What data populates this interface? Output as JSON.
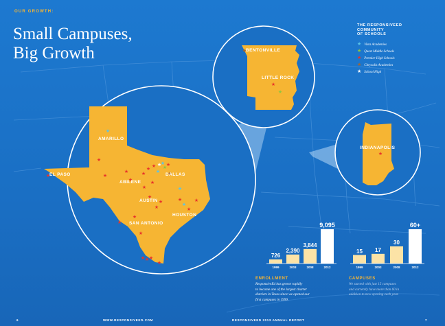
{
  "header": {
    "eyebrow": "OUR GROWTH:",
    "title_line1": "Small Campuses,",
    "title_line2": "Big Growth"
  },
  "legend": {
    "heading_line1": "THE RESPONSIVEED",
    "heading_line2": "COMMUNITY",
    "heading_line3": "OF SCHOOLS",
    "items": [
      {
        "label": "Vista Academies",
        "color": "#5bc4e8",
        "icon": "star-icon"
      },
      {
        "label": "Quest Middle Schools",
        "color": "#8ec63f",
        "icon": "star-icon"
      },
      {
        "label": "Premier High Schools",
        "color": "#e8332a",
        "icon": "star-icon"
      },
      {
        "label": "Chrysalis Academies",
        "color": "#a8652a",
        "icon": "star-icon"
      },
      {
        "label": "School High",
        "color": "#ffffff",
        "icon": "star-icon"
      }
    ]
  },
  "map": {
    "state_color": "#f6b533",
    "texas_cities": {
      "amarillo": "AMARILLO",
      "el_paso": "EL PASO",
      "abilene": "ABILENE",
      "dallas": "DALLAS",
      "austin": "AUSTIN",
      "houston": "HOUSTON",
      "san_antonio": "SAN ANTONIO"
    },
    "arkansas_cities": {
      "bentonville": "BENTONVILLE",
      "little_rock": "LITTLE ROCK"
    },
    "indiana_cities": {
      "indianapolis": "INDIANAPOLIS"
    }
  },
  "enrollment": {
    "title": "ENROLLMENT",
    "text": [
      "ResponsiveEd has grown rapidly",
      "to become one of the largest charter",
      "districts in Texas since we opened our",
      "first campuses in 1999."
    ]
  },
  "campuses": {
    "title": "CAMPUSES",
    "text": [
      "We started with just 15 campuses",
      "and currently have more than 60 in",
      "addition to new opening each year."
    ]
  },
  "chart_data": [
    {
      "type": "bar",
      "categories": [
        "1999",
        "2003",
        "2008",
        "2012"
      ],
      "values": [
        726,
        2390,
        3844,
        9095
      ],
      "value_labels": [
        "726",
        "2,390",
        "3,844",
        "9,095"
      ]
    },
    {
      "type": "bar",
      "categories": [
        "1999",
        "2003",
        "2008",
        "2012"
      ],
      "values": [
        15,
        17,
        30,
        60
      ],
      "value_labels": [
        "15",
        "17",
        "30",
        "60+"
      ]
    }
  ],
  "footer": {
    "page_left": "6",
    "website": "WWW.RESPONSIVEED.COM",
    "report": "RESPONSIVEED 2013 ANNUAL REPORT",
    "page_right": "7"
  }
}
